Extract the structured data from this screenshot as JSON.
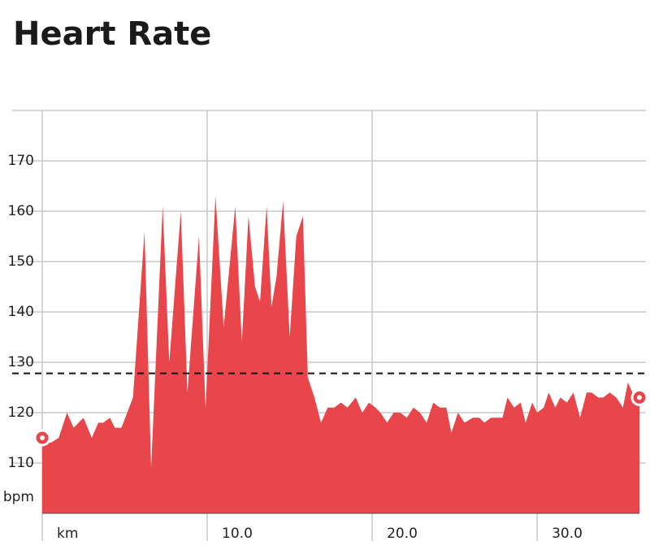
{
  "chart_data": {
    "type": "area",
    "title": "Heart Rate",
    "x_label": "km",
    "y_label": "bpm",
    "color": "#e8464a",
    "x": [
      0,
      0.5,
      1.0,
      1.5,
      1.9,
      2.5,
      3.0,
      3.4,
      3.7,
      4.1,
      4.4,
      4.8,
      5.5,
      6.2,
      6.6,
      7.3,
      7.7,
      8.4,
      8.8,
      9.5,
      9.9,
      10.5,
      11.0,
      11.7,
      12.1,
      12.5,
      12.9,
      13.2,
      13.6,
      13.9,
      14.2,
      14.6,
      15.0,
      15.4,
      15.8,
      16.1,
      16.5,
      16.9,
      17.3,
      17.7,
      18.1,
      18.5,
      19.0,
      19.4,
      19.8,
      20.2,
      20.5,
      20.9,
      21.3,
      21.7,
      22.1,
      22.5,
      22.9,
      23.3,
      23.7,
      24.1,
      24.5,
      24.8,
      25.2,
      25.6,
      26.1,
      26.5,
      26.8,
      27.2,
      27.5,
      27.9,
      28.2,
      28.6,
      29.0,
      29.3,
      29.7,
      30.0,
      30.4,
      30.7,
      31.1,
      31.4,
      31.8,
      32.2,
      32.6,
      33.0,
      33.3,
      33.7,
      34.0,
      34.4,
      34.8,
      35.2,
      35.5,
      35.9,
      36.2
    ],
    "values": [
      115,
      114,
      115,
      120,
      117,
      119,
      115,
      118,
      118,
      119,
      117,
      117,
      123,
      156,
      109,
      161,
      130,
      160,
      124,
      155,
      121,
      163,
      137,
      161,
      134,
      159,
      145,
      142,
      161,
      141,
      147,
      162,
      135,
      155,
      159,
      127,
      123,
      118,
      121,
      121,
      122,
      121,
      123,
      120,
      122,
      121,
      120,
      118,
      120,
      120,
      119,
      121,
      120,
      118,
      122,
      121,
      121,
      116,
      120,
      118,
      119,
      119,
      118,
      119,
      119,
      119,
      123,
      121,
      122,
      118,
      122,
      120,
      121,
      124,
      121,
      123,
      122,
      124,
      119,
      124,
      124,
      123,
      123,
      124,
      123,
      121,
      126,
      123,
      123
    ],
    "average": 127.8,
    "xlim": [
      0,
      36.2
    ],
    "xticks": [
      {
        "value": 10,
        "label": "10.0"
      },
      {
        "value": 20,
        "label": "20.0"
      },
      {
        "value": 30,
        "label": "30.0"
      }
    ],
    "ylim": [
      100,
      180
    ],
    "yticks": [
      110,
      120,
      130,
      140,
      150,
      160,
      170
    ],
    "grid": true
  }
}
